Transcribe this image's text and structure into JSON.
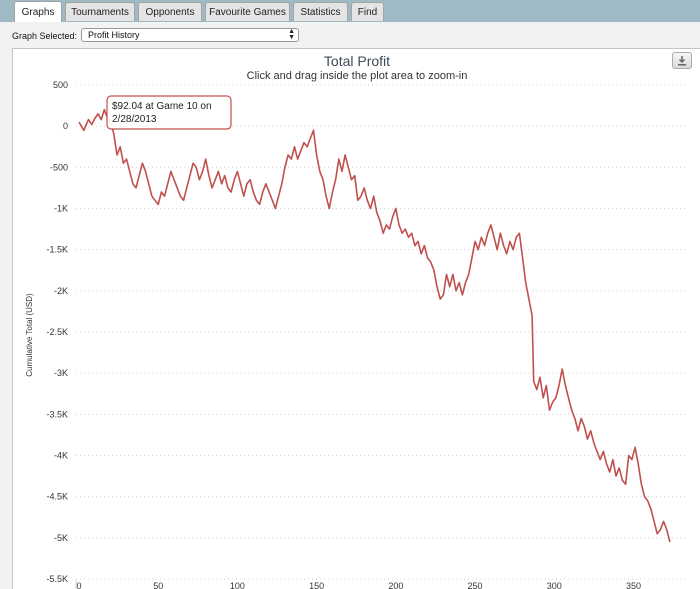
{
  "tabs": [
    {
      "label": "Graphs",
      "active": true
    },
    {
      "label": "Tournaments",
      "active": false
    },
    {
      "label": "Opponents",
      "active": false
    },
    {
      "label": "Favourite Games",
      "active": false
    },
    {
      "label": "Statistics",
      "active": false
    },
    {
      "label": "Find",
      "active": false
    }
  ],
  "graph_select": {
    "label": "Graph Selected:",
    "value": "Profit History"
  },
  "export_icon": "download-icon",
  "colors": {
    "series": "#c0504d",
    "tabbar": "#9fb9c5"
  },
  "chart_data": {
    "type": "line",
    "title": "Total Profit",
    "subtitle": "Click and drag inside the plot area to zoom-in",
    "ylabel": "Cumulative Total (USD)",
    "xlabel": "",
    "xlim": [
      0,
      380
    ],
    "ylim": [
      -5500,
      500
    ],
    "xticks": [
      0,
      50,
      100,
      150,
      200,
      250,
      300,
      350
    ],
    "yticks": [
      500,
      0,
      -500,
      -1000,
      -1500,
      -2000,
      -2500,
      -3000,
      -3500,
      -4000,
      -4500,
      -5000,
      -5500
    ],
    "ytick_labels": [
      "500",
      "0",
      "-500",
      "-1K",
      "-1.5K",
      "-2K",
      "-2.5K",
      "-3K",
      "-3.5K",
      "-4K",
      "-4.5K",
      "-5K",
      "-5.5K"
    ],
    "tooltip": {
      "line1": "$92.04 at Game 10 on",
      "line2": "2/28/2013",
      "x": 10,
      "y": 92.04
    },
    "points": [
      [
        0,
        50
      ],
      [
        3,
        -50
      ],
      [
        6,
        80
      ],
      [
        8,
        20
      ],
      [
        10,
        92
      ],
      [
        12,
        150
      ],
      [
        14,
        80
      ],
      [
        16,
        200
      ],
      [
        18,
        100
      ],
      [
        20,
        50
      ],
      [
        22,
        -100
      ],
      [
        24,
        -350
      ],
      [
        26,
        -250
      ],
      [
        28,
        -450
      ],
      [
        30,
        -400
      ],
      [
        32,
        -550
      ],
      [
        34,
        -700
      ],
      [
        36,
        -750
      ],
      [
        38,
        -600
      ],
      [
        40,
        -450
      ],
      [
        42,
        -550
      ],
      [
        44,
        -700
      ],
      [
        46,
        -850
      ],
      [
        48,
        -900
      ],
      [
        50,
        -950
      ],
      [
        52,
        -800
      ],
      [
        54,
        -850
      ],
      [
        56,
        -700
      ],
      [
        58,
        -550
      ],
      [
        60,
        -650
      ],
      [
        62,
        -750
      ],
      [
        64,
        -850
      ],
      [
        66,
        -900
      ],
      [
        68,
        -750
      ],
      [
        70,
        -600
      ],
      [
        72,
        -450
      ],
      [
        74,
        -500
      ],
      [
        76,
        -650
      ],
      [
        78,
        -550
      ],
      [
        80,
        -400
      ],
      [
        82,
        -600
      ],
      [
        84,
        -750
      ],
      [
        86,
        -650
      ],
      [
        88,
        -550
      ],
      [
        90,
        -700
      ],
      [
        92,
        -600
      ],
      [
        94,
        -750
      ],
      [
        96,
        -800
      ],
      [
        98,
        -650
      ],
      [
        100,
        -550
      ],
      [
        102,
        -700
      ],
      [
        104,
        -850
      ],
      [
        106,
        -700
      ],
      [
        108,
        -650
      ],
      [
        110,
        -800
      ],
      [
        112,
        -900
      ],
      [
        114,
        -950
      ],
      [
        116,
        -800
      ],
      [
        118,
        -700
      ],
      [
        120,
        -800
      ],
      [
        122,
        -900
      ],
      [
        124,
        -1000
      ],
      [
        126,
        -850
      ],
      [
        128,
        -700
      ],
      [
        130,
        -500
      ],
      [
        132,
        -350
      ],
      [
        134,
        -400
      ],
      [
        136,
        -250
      ],
      [
        138,
        -400
      ],
      [
        140,
        -300
      ],
      [
        142,
        -200
      ],
      [
        144,
        -250
      ],
      [
        146,
        -150
      ],
      [
        148,
        -50
      ],
      [
        150,
        -350
      ],
      [
        152,
        -550
      ],
      [
        154,
        -650
      ],
      [
        156,
        -850
      ],
      [
        158,
        -1000
      ],
      [
        160,
        -800
      ],
      [
        162,
        -650
      ],
      [
        164,
        -400
      ],
      [
        166,
        -550
      ],
      [
        168,
        -350
      ],
      [
        170,
        -500
      ],
      [
        172,
        -650
      ],
      [
        174,
        -600
      ],
      [
        176,
        -900
      ],
      [
        178,
        -850
      ],
      [
        180,
        -750
      ],
      [
        182,
        -900
      ],
      [
        184,
        -1000
      ],
      [
        186,
        -850
      ],
      [
        188,
        -1050
      ],
      [
        190,
        -1150
      ],
      [
        192,
        -1300
      ],
      [
        194,
        -1200
      ],
      [
        196,
        -1250
      ],
      [
        198,
        -1100
      ],
      [
        200,
        -1000
      ],
      [
        202,
        -1200
      ],
      [
        204,
        -1300
      ],
      [
        206,
        -1250
      ],
      [
        208,
        -1350
      ],
      [
        210,
        -1300
      ],
      [
        212,
        -1450
      ],
      [
        214,
        -1400
      ],
      [
        216,
        -1550
      ],
      [
        218,
        -1450
      ],
      [
        220,
        -1600
      ],
      [
        222,
        -1650
      ],
      [
        224,
        -1750
      ],
      [
        226,
        -1950
      ],
      [
        228,
        -2100
      ],
      [
        230,
        -2050
      ],
      [
        232,
        -1800
      ],
      [
        234,
        -1950
      ],
      [
        236,
        -1800
      ],
      [
        238,
        -2000
      ],
      [
        240,
        -1900
      ],
      [
        242,
        -2050
      ],
      [
        244,
        -1900
      ],
      [
        246,
        -1800
      ],
      [
        248,
        -1600
      ],
      [
        250,
        -1400
      ],
      [
        252,
        -1500
      ],
      [
        254,
        -1350
      ],
      [
        256,
        -1450
      ],
      [
        258,
        -1300
      ],
      [
        260,
        -1200
      ],
      [
        262,
        -1350
      ],
      [
        264,
        -1500
      ],
      [
        266,
        -1300
      ],
      [
        268,
        -1450
      ],
      [
        270,
        -1550
      ],
      [
        272,
        -1400
      ],
      [
        274,
        -1500
      ],
      [
        276,
        -1350
      ],
      [
        278,
        -1300
      ],
      [
        280,
        -1600
      ],
      [
        282,
        -1900
      ],
      [
        284,
        -2100
      ],
      [
        286,
        -2300
      ],
      [
        287,
        -3100
      ],
      [
        289,
        -3200
      ],
      [
        291,
        -3050
      ],
      [
        293,
        -3300
      ],
      [
        295,
        -3150
      ],
      [
        297,
        -3450
      ],
      [
        299,
        -3350
      ],
      [
        301,
        -3300
      ],
      [
        303,
        -3150
      ],
      [
        305,
        -2950
      ],
      [
        307,
        -3150
      ],
      [
        309,
        -3300
      ],
      [
        311,
        -3450
      ],
      [
        313,
        -3550
      ],
      [
        315,
        -3700
      ],
      [
        317,
        -3550
      ],
      [
        319,
        -3650
      ],
      [
        321,
        -3800
      ],
      [
        323,
        -3700
      ],
      [
        325,
        -3850
      ],
      [
        327,
        -3950
      ],
      [
        329,
        -4050
      ],
      [
        331,
        -3950
      ],
      [
        333,
        -4100
      ],
      [
        335,
        -4200
      ],
      [
        337,
        -4050
      ],
      [
        339,
        -4250
      ],
      [
        341,
        -4150
      ],
      [
        343,
        -4300
      ],
      [
        345,
        -4350
      ],
      [
        347,
        -4000
      ],
      [
        349,
        -4050
      ],
      [
        351,
        -3900
      ],
      [
        353,
        -4100
      ],
      [
        355,
        -4350
      ],
      [
        357,
        -4500
      ],
      [
        359,
        -4550
      ],
      [
        361,
        -4650
      ],
      [
        363,
        -4800
      ],
      [
        365,
        -4950
      ],
      [
        367,
        -4900
      ],
      [
        369,
        -4800
      ],
      [
        371,
        -4900
      ],
      [
        373,
        -5050
      ]
    ]
  }
}
